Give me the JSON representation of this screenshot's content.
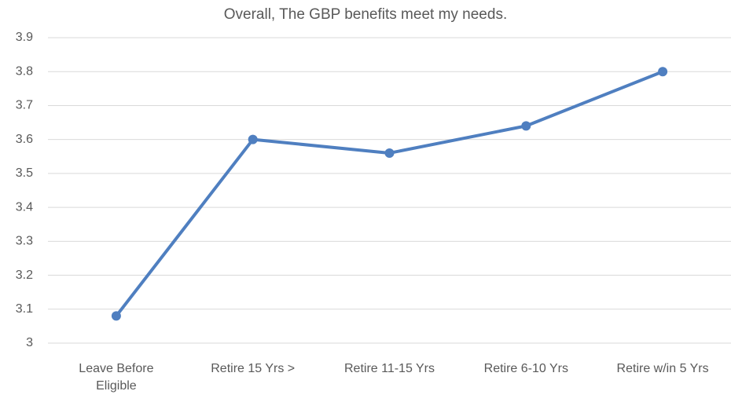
{
  "chart_data": {
    "type": "line",
    "title": "Overall, The GBP benefits meet my needs.",
    "categories": [
      "Leave Before Eligible",
      "Retire 15 Yrs >",
      "Retire 11-15 Yrs",
      "Retire 6-10 Yrs",
      "Retire w/in 5 Yrs"
    ],
    "values": [
      3.08,
      3.6,
      3.56,
      3.64,
      3.8
    ],
    "color": "#4f7fc0",
    "ylim": [
      3,
      3.9
    ],
    "yticks": [
      3,
      3.1,
      3.2,
      3.3,
      3.4,
      3.5,
      3.6,
      3.7,
      3.8,
      3.9
    ],
    "grid": true
  }
}
